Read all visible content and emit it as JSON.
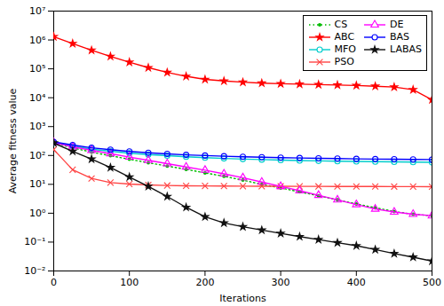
{
  "chart_data": {
    "type": "line",
    "xlabel": "Iterations",
    "ylabel": "Average fitness value",
    "x": [
      0,
      25,
      50,
      75,
      100,
      125,
      150,
      175,
      200,
      225,
      250,
      275,
      300,
      325,
      350,
      375,
      400,
      425,
      450,
      475,
      500
    ],
    "series": [
      {
        "name": "CS",
        "color": "#00bb00",
        "marker": "point",
        "line_style": "dotted",
        "values": [
          270,
          185,
          130,
          98,
          74,
          56,
          43,
          33,
          25,
          19,
          14,
          10,
          7.5,
          5.5,
          4.0,
          2.9,
          2.1,
          1.55,
          1.15,
          0.92,
          0.82
        ]
      },
      {
        "name": "ABC",
        "color": "#ff0000",
        "marker": "star",
        "line_style": "solid",
        "values": [
          1300000,
          750000,
          440000,
          270000,
          170000,
          110000,
          75000,
          55000,
          43000,
          38000,
          34500,
          32000,
          30500,
          29500,
          28500,
          27500,
          26500,
          25000,
          23500,
          19000,
          8500
        ]
      },
      {
        "name": "MFO",
        "color": "#00cccc",
        "marker": "circle",
        "line_style": "solid",
        "values": [
          280,
          210,
          165,
          140,
          120,
          108,
          98,
          90,
          84,
          79,
          75,
          72,
          69,
          67,
          65,
          63,
          62,
          61,
          60,
          59,
          58
        ]
      },
      {
        "name": "PSO",
        "color": "#ff4444",
        "marker": "x",
        "line_style": "solid",
        "values": [
          160,
          32,
          16,
          11.5,
          10.2,
          9.5,
          9.1,
          8.9,
          8.8,
          8.7,
          8.65,
          8.6,
          8.55,
          8.5,
          8.48,
          8.45,
          8.42,
          8.4,
          8.38,
          8.35,
          8.3
        ]
      },
      {
        "name": "DE",
        "color": "#ff00ff",
        "marker": "triangle",
        "line_style": "solid",
        "values": [
          280,
          200,
          150,
          115,
          88,
          68,
          52,
          40,
          31,
          23,
          17,
          12,
          8.5,
          6.0,
          4.2,
          2.9,
          2.0,
          1.4,
          1.1,
          0.92,
          0.82
        ]
      },
      {
        "name": "BAS",
        "color": "#0000ff",
        "marker": "circle",
        "line_style": "solid",
        "values": [
          295,
          230,
          185,
          158,
          138,
          124,
          113,
          105,
          99,
          94,
          90,
          87,
          84,
          82,
          80,
          78,
          76,
          75,
          74,
          73,
          72
        ]
      },
      {
        "name": "LABAS",
        "color": "#111111",
        "marker": "star",
        "line_style": "solid",
        "values": [
          270,
          140,
          75,
          38,
          18,
          8.5,
          3.8,
          1.6,
          0.75,
          0.46,
          0.34,
          0.26,
          0.2,
          0.155,
          0.122,
          0.095,
          0.075,
          0.055,
          0.04,
          0.03,
          0.022
        ]
      }
    ],
    "xlim": [
      0,
      500
    ],
    "xticks": [
      0,
      100,
      200,
      300,
      400,
      500
    ],
    "ylim": [
      0.01,
      10000000
    ],
    "yticks": [
      {
        "value": 0.01,
        "label": "10⁻²"
      },
      {
        "value": 0.1,
        "label": "10⁻¹"
      },
      {
        "value": 1,
        "label": "10⁰"
      },
      {
        "value": 10,
        "label": "10¹"
      },
      {
        "value": 100,
        "label": "10²"
      },
      {
        "value": 1000,
        "label": "10³"
      },
      {
        "value": 10000,
        "label": "10⁴"
      },
      {
        "value": 100000,
        "label": "10⁵"
      },
      {
        "value": 1000000,
        "label": "10⁶"
      },
      {
        "value": 10000000,
        "label": "10⁷"
      }
    ],
    "log": "y",
    "grid": false,
    "legend": "upper right"
  }
}
